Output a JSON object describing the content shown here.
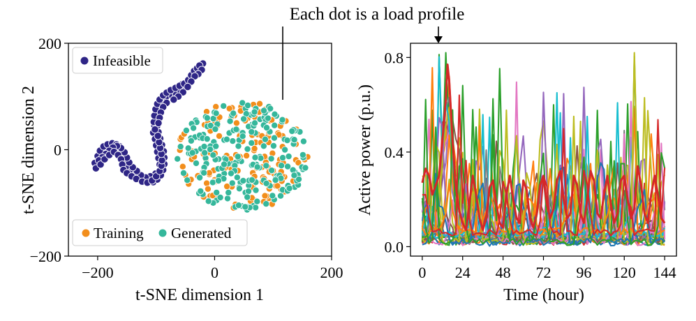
{
  "annotation": {
    "text": "Each dot is a load profile"
  },
  "chart_data": [
    {
      "type": "scatter",
      "title": "",
      "xlabel": "t-SNE dimension 1",
      "ylabel": "t-SNE dimension 2",
      "xlim": [
        -250,
        200
      ],
      "ylim": [
        -200,
        200
      ],
      "xticks": [
        -200,
        0,
        200
      ],
      "xtick_labels": [
        "−200",
        "0",
        "200"
      ],
      "yticks": [
        -200,
        0,
        200
      ],
      "ytick_labels": [
        "−200",
        "0",
        "200"
      ],
      "grid": false,
      "series": [
        {
          "name": "Infeasible",
          "color": "#2e2586",
          "legend_position": "upper-left",
          "points": [
            [
              -205,
              -25
            ],
            [
              -200,
              -12
            ],
            [
              -196,
              -2
            ],
            [
              -190,
              6
            ],
            [
              -183,
              10
            ],
            [
              -175,
              12
            ],
            [
              -168,
              10
            ],
            [
              -162,
              6
            ],
            [
              -158,
              -2
            ],
            [
              -155,
              -12
            ],
            [
              -152,
              -22
            ],
            [
              -148,
              -32
            ],
            [
              -142,
              -40
            ],
            [
              -135,
              -46
            ],
            [
              -127,
              -52
            ],
            [
              -120,
              -57
            ],
            [
              -112,
              -60
            ],
            [
              -105,
              -61
            ],
            [
              -98,
              -56
            ],
            [
              -92,
              -48
            ],
            [
              -88,
              -38
            ],
            [
              -86,
              -27
            ],
            [
              -86,
              -15
            ],
            [
              -87,
              -3
            ],
            [
              -90,
              9
            ],
            [
              -93,
              21
            ],
            [
              -96,
              33
            ],
            [
              -98,
              45
            ],
            [
              -99,
              57
            ],
            [
              -98,
              68
            ],
            [
              -96,
              79
            ],
            [
              -92,
              90
            ],
            [
              -86,
              99
            ],
            [
              -79,
              106
            ],
            [
              -71,
              110
            ],
            [
              -63,
              112
            ],
            [
              -55,
              118
            ],
            [
              -48,
              126
            ],
            [
              -42,
              135
            ],
            [
              -37,
              144
            ],
            [
              -33,
              150
            ],
            [
              -28,
              156
            ],
            [
              -24,
              160
            ],
            [
              -20,
              162
            ],
            [
              -56,
              123
            ],
            [
              -62,
              112
            ],
            [
              -70,
              108
            ],
            [
              -78,
              103
            ],
            [
              -84,
              97
            ],
            [
              -90,
              88
            ],
            [
              -95,
              78
            ],
            [
              -103,
              45
            ],
            [
              -105,
              32
            ],
            [
              -102,
              20
            ],
            [
              -100,
              8
            ],
            [
              -98,
              -4
            ],
            [
              -96,
              -16
            ],
            [
              -94,
              -28
            ],
            [
              -101,
              -45
            ],
            [
              -110,
              -50
            ],
            [
              -118,
              -52
            ],
            [
              -126,
              -48
            ],
            [
              -133,
              -40
            ],
            [
              -140,
              -33
            ],
            [
              -146,
              -24
            ],
            [
              -150,
              -15
            ],
            [
              -154,
              -5
            ],
            [
              -160,
              3
            ],
            [
              -167,
              7
            ],
            [
              -174,
              4
            ],
            [
              -180,
              -2
            ],
            [
              -186,
              -8
            ],
            [
              -192,
              -14
            ],
            [
              -198,
              -20
            ],
            [
              -203,
              -35
            ],
            [
              -195,
              -28
            ],
            [
              -188,
              -18
            ],
            [
              -180,
              -10
            ],
            [
              -172,
              -4
            ],
            [
              -165,
              -10
            ],
            [
              -160,
              -18
            ],
            [
              -158,
              -28
            ],
            [
              -156,
              -38
            ],
            [
              -150,
              -44
            ],
            [
              -142,
              -50
            ],
            [
              -134,
              -55
            ],
            [
              -124,
              -60
            ],
            [
              -115,
              -62
            ],
            [
              -107,
              -58
            ],
            [
              -100,
              -50
            ],
            [
              -94,
              -40
            ],
            [
              -91,
              -30
            ],
            [
              -90,
              -20
            ],
            [
              -91,
              -8
            ],
            [
              -93,
              3
            ],
            [
              -95,
              14
            ],
            [
              -97,
              26
            ],
            [
              -102,
              38
            ],
            [
              -104,
              52
            ],
            [
              -103,
              64
            ],
            [
              -101,
              76
            ],
            [
              -98,
              86
            ],
            [
              -94,
              94
            ],
            [
              -88,
              102
            ],
            [
              -82,
              107
            ],
            [
              -75,
              112
            ],
            [
              -67,
              116
            ],
            [
              -60,
              120
            ],
            [
              -52,
              124
            ],
            [
              -45,
              131
            ],
            [
              -40,
              140
            ],
            [
              -35,
              148
            ],
            [
              -30,
              153
            ],
            [
              -26,
              158
            ],
            [
              -22,
              150
            ],
            [
              -28,
              142
            ],
            [
              -34,
              138
            ],
            [
              -40,
              128
            ],
            [
              -46,
              118
            ],
            [
              -54,
              108
            ],
            [
              -62,
              100
            ],
            [
              -70,
              94
            ],
            [
              -82,
              88
            ],
            [
              -88,
              80
            ],
            [
              -92,
              70
            ],
            [
              -94,
              60
            ],
            [
              -96,
              50
            ]
          ]
        },
        {
          "name": "Training",
          "color": "#f28e1c",
          "legend_position": "lower-left",
          "points": []
        },
        {
          "name": "Generated",
          "color": "#35b79b",
          "legend_position": "lower-left",
          "points": []
        }
      ],
      "cloud": {
        "description": "Training and Generated points interleaved in a disk",
        "center": [
          48,
          -12
        ],
        "radius_x": 112,
        "radius_y": 102,
        "training_count": 150,
        "generated_count": 215
      }
    },
    {
      "type": "line",
      "title": "",
      "xlabel": "Time (hour)",
      "ylabel": "Active power (p.u.)",
      "xlim": [
        -7,
        151
      ],
      "ylim": [
        -0.04,
        0.86
      ],
      "xticks": [
        0,
        24,
        48,
        72,
        96,
        120,
        144
      ],
      "xtick_labels": [
        "0",
        "24",
        "48",
        "72",
        "96",
        "120",
        "144"
      ],
      "yticks": [
        0.0,
        0.4,
        0.8
      ],
      "ytick_labels": [
        "0.0",
        "0.4",
        "0.8"
      ],
      "grid": false,
      "series_count": 30,
      "series_colors": [
        "#1f77b4",
        "#ff7f0e",
        "#2ca02c",
        "#d62728",
        "#9467bd",
        "#8c564b",
        "#e377c2",
        "#7f7f7f",
        "#bcbd22",
        "#17becf",
        "#1f77b4",
        "#ff7f0e",
        "#2ca02c",
        "#9467bd",
        "#e377c2",
        "#17becf",
        "#bcbd22",
        "#7f7f7f",
        "#1f77b4",
        "#ff7f0e",
        "#2ca02c",
        "#9467bd",
        "#8c564b",
        "#e377c2",
        "#17becf",
        "#bcbd22",
        "#1f77b4",
        "#ff7f0e",
        "#2ca02c",
        "#d62728"
      ],
      "highlight_series": {
        "name": "red profile",
        "color": "#d62728",
        "x": [
          0,
          2,
          4,
          6,
          8,
          10,
          12,
          14,
          15,
          16,
          18,
          20,
          22,
          24,
          26,
          28,
          30,
          32,
          34,
          36,
          38,
          40,
          42,
          44,
          46,
          48,
          50,
          52,
          54,
          56,
          58,
          60,
          62,
          64,
          66,
          68,
          70,
          72,
          74,
          76,
          78,
          80,
          82,
          84,
          86,
          88,
          90,
          92,
          94,
          96,
          98,
          100,
          102,
          104,
          106,
          108,
          110,
          112,
          114,
          116,
          118,
          120,
          122,
          124,
          126,
          128,
          130,
          132,
          134,
          136,
          138,
          140,
          142,
          144
        ],
        "values": [
          0.27,
          0.33,
          0.3,
          0.22,
          0.26,
          0.3,
          0.45,
          0.62,
          0.77,
          0.7,
          0.45,
          0.25,
          0.15,
          0.1,
          0.07,
          0.18,
          0.3,
          0.22,
          0.12,
          0.07,
          0.12,
          0.25,
          0.28,
          0.18,
          0.1,
          0.08,
          0.22,
          0.3,
          0.2,
          0.12,
          0.1,
          0.28,
          0.24,
          0.12,
          0.08,
          0.14,
          0.26,
          0.3,
          0.18,
          0.12,
          0.16,
          0.28,
          0.32,
          0.2,
          0.12,
          0.14,
          0.3,
          0.26,
          0.14,
          0.1,
          0.2,
          0.32,
          0.28,
          0.14,
          0.12,
          0.22,
          0.3,
          0.18,
          0.1,
          0.14,
          0.28,
          0.3,
          0.2,
          0.12,
          0.16,
          0.34,
          0.26,
          0.14,
          0.1,
          0.22,
          0.3,
          0.22,
          0.12,
          0.1
        ]
      }
    }
  ]
}
